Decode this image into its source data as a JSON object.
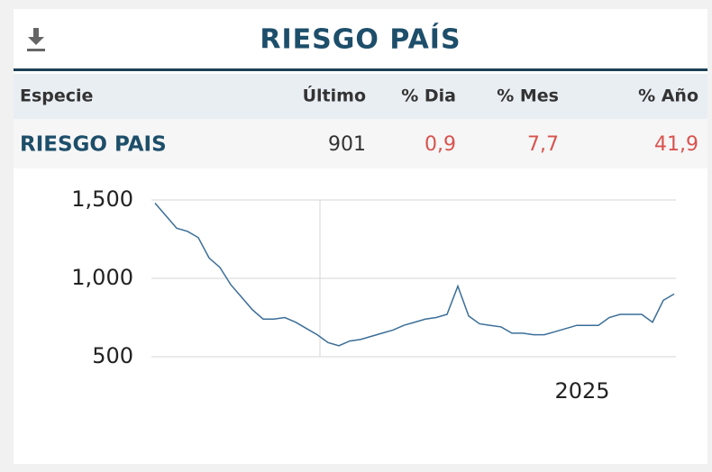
{
  "header": {
    "title": "RIESGO PAÍS"
  },
  "table": {
    "columns": [
      "Especie",
      "Último",
      "% Dia",
      "% Mes",
      "% Año"
    ],
    "rows": [
      [
        "RIESGO PAIS",
        "901",
        "0,9",
        "7,7",
        "41,9"
      ]
    ]
  },
  "chart_data": {
    "type": "line",
    "values": [
      1480,
      1400,
      1320,
      1300,
      1260,
      1130,
      1070,
      960,
      880,
      800,
      740,
      740,
      750,
      720,
      680,
      640,
      590,
      570,
      600,
      610,
      630,
      650,
      670,
      700,
      720,
      740,
      750,
      770,
      950,
      760,
      710,
      700,
      690,
      650,
      650,
      640,
      640,
      660,
      680,
      700,
      700,
      700,
      750,
      770,
      770,
      770,
      720,
      860,
      900
    ],
    "color": "#3b6e97",
    "xlim": [
      0,
      48
    ],
    "xticks": [
      {
        "value": 39,
        "label": "2025"
      }
    ],
    "ylim": [
      500,
      1500
    ],
    "yticks": [
      {
        "value": 1500,
        "label": "1,500"
      },
      {
        "value": 1000,
        "label": "1,000"
      },
      500
    ],
    "grid": true
  }
}
